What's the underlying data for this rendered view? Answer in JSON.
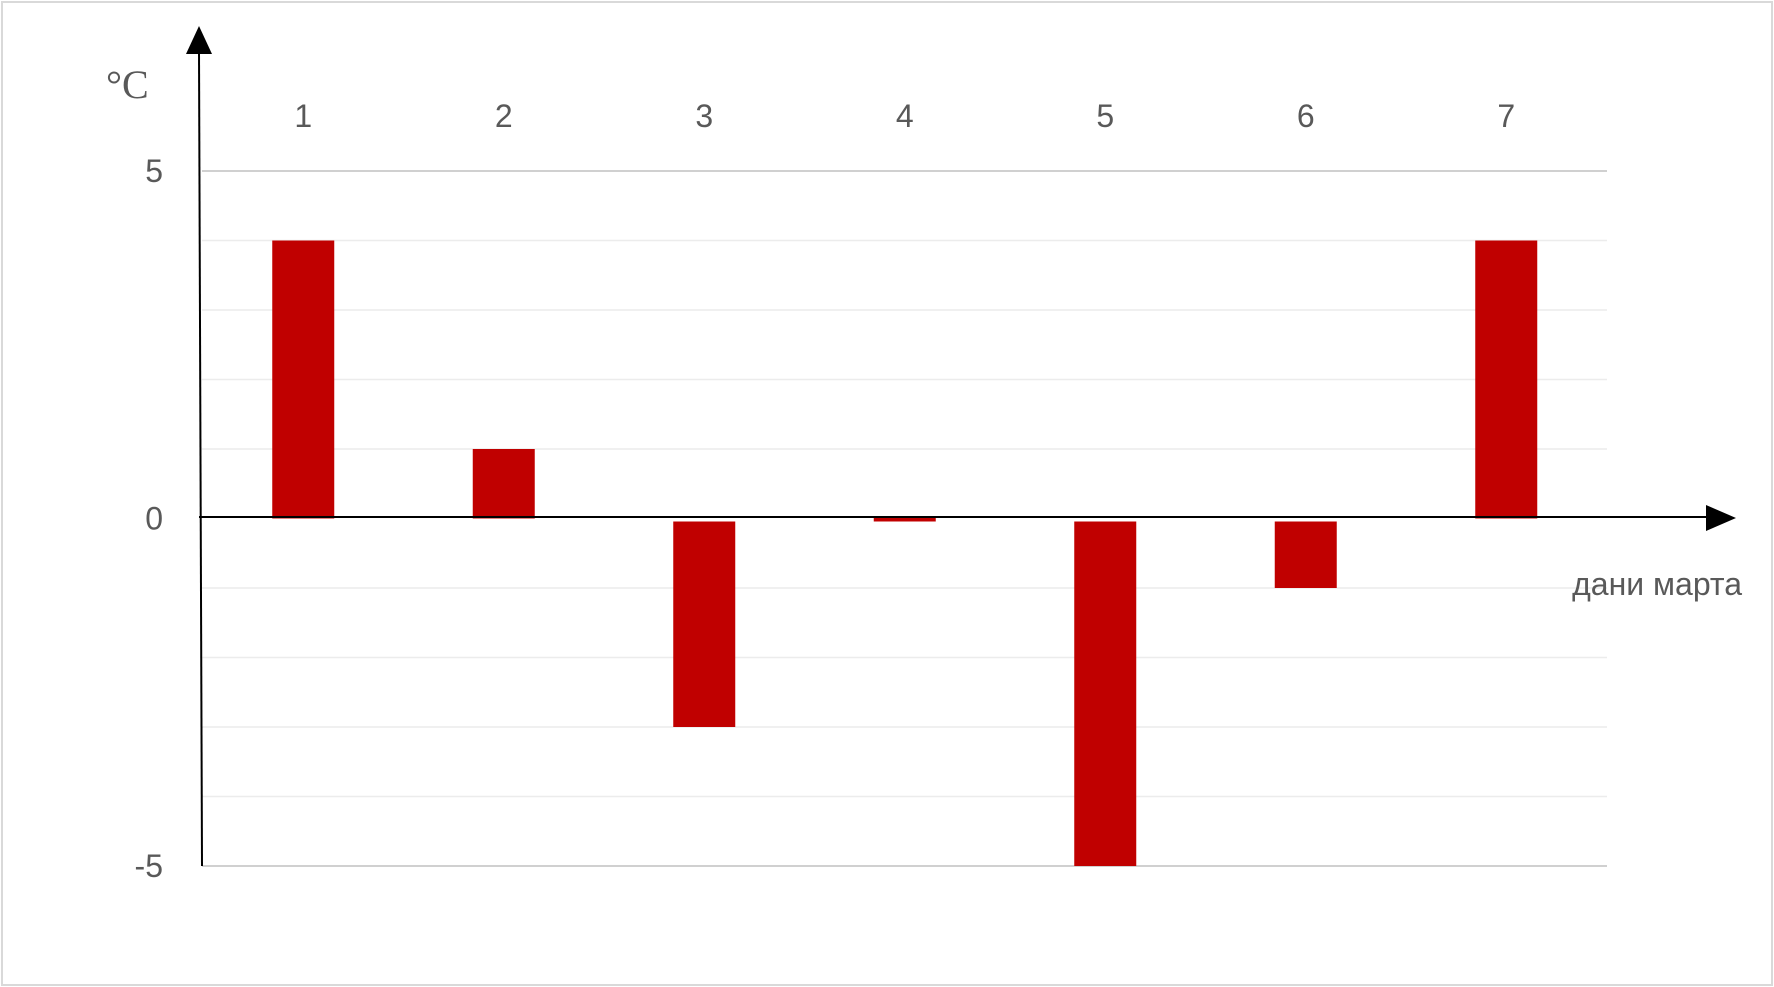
{
  "chart_data": {
    "type": "bar",
    "categories": [
      "1",
      "2",
      "3",
      "4",
      "5",
      "6",
      "7"
    ],
    "values": [
      4,
      1,
      -3,
      0,
      -5,
      -1,
      4
    ],
    "title": "",
    "xlabel": "дани марта",
    "ylabel": "°C",
    "ylim": [
      -5,
      5
    ],
    "y_ticks": [
      "5",
      "0",
      "-5"
    ],
    "y_tick_values": [
      5,
      0,
      -5
    ],
    "minor_grid_step": 1,
    "grid": true,
    "legend": "none",
    "category_labels_position": "top",
    "bar_color": "#c00000"
  }
}
